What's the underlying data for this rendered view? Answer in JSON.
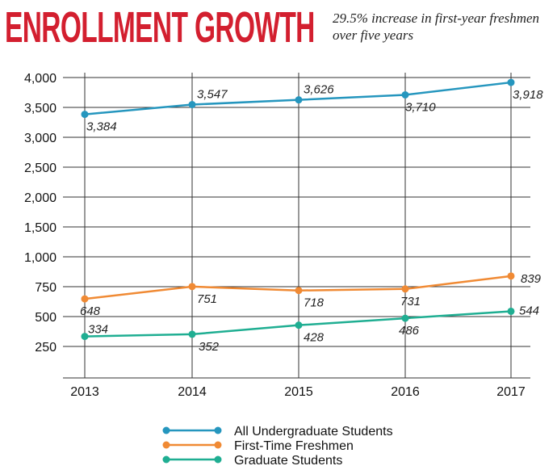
{
  "header": {
    "title": "ENROLLMENT GROWTH",
    "subtitle": "29.5% increase in first-year freshmen over five years"
  },
  "chart_data": {
    "type": "line",
    "title": "ENROLLMENT GROWTH",
    "subtitle": "29.5% increase in first-year freshmen over five years",
    "xlabel": "",
    "ylabel": "",
    "x": [
      "2013",
      "2014",
      "2015",
      "2016",
      "2017"
    ],
    "y_ticks": [
      "4,000",
      "3,500",
      "3,000",
      "2,500",
      "2,000",
      "1,500",
      "1,000",
      "750",
      "500",
      "250"
    ],
    "grid": true,
    "legend_position": "bottom-center",
    "series": [
      {
        "name": "All Undergraduate Students",
        "color": "#2596be",
        "values": [
          3384,
          3547,
          3626,
          3710,
          3918
        ],
        "labels": [
          "3,384",
          "3,547",
          "3,626",
          "3,710",
          "3,918"
        ]
      },
      {
        "name": "First-Time Freshmen",
        "color": "#f08a34",
        "values": [
          648,
          751,
          718,
          731,
          839
        ],
        "labels": [
          "648",
          "751",
          "718",
          "731",
          "839"
        ]
      },
      {
        "name": "Graduate Students",
        "color": "#1fae92",
        "values": [
          334,
          352,
          428,
          486,
          544
        ],
        "labels": [
          "334",
          "352",
          "428",
          "486",
          "544"
        ]
      }
    ]
  }
}
